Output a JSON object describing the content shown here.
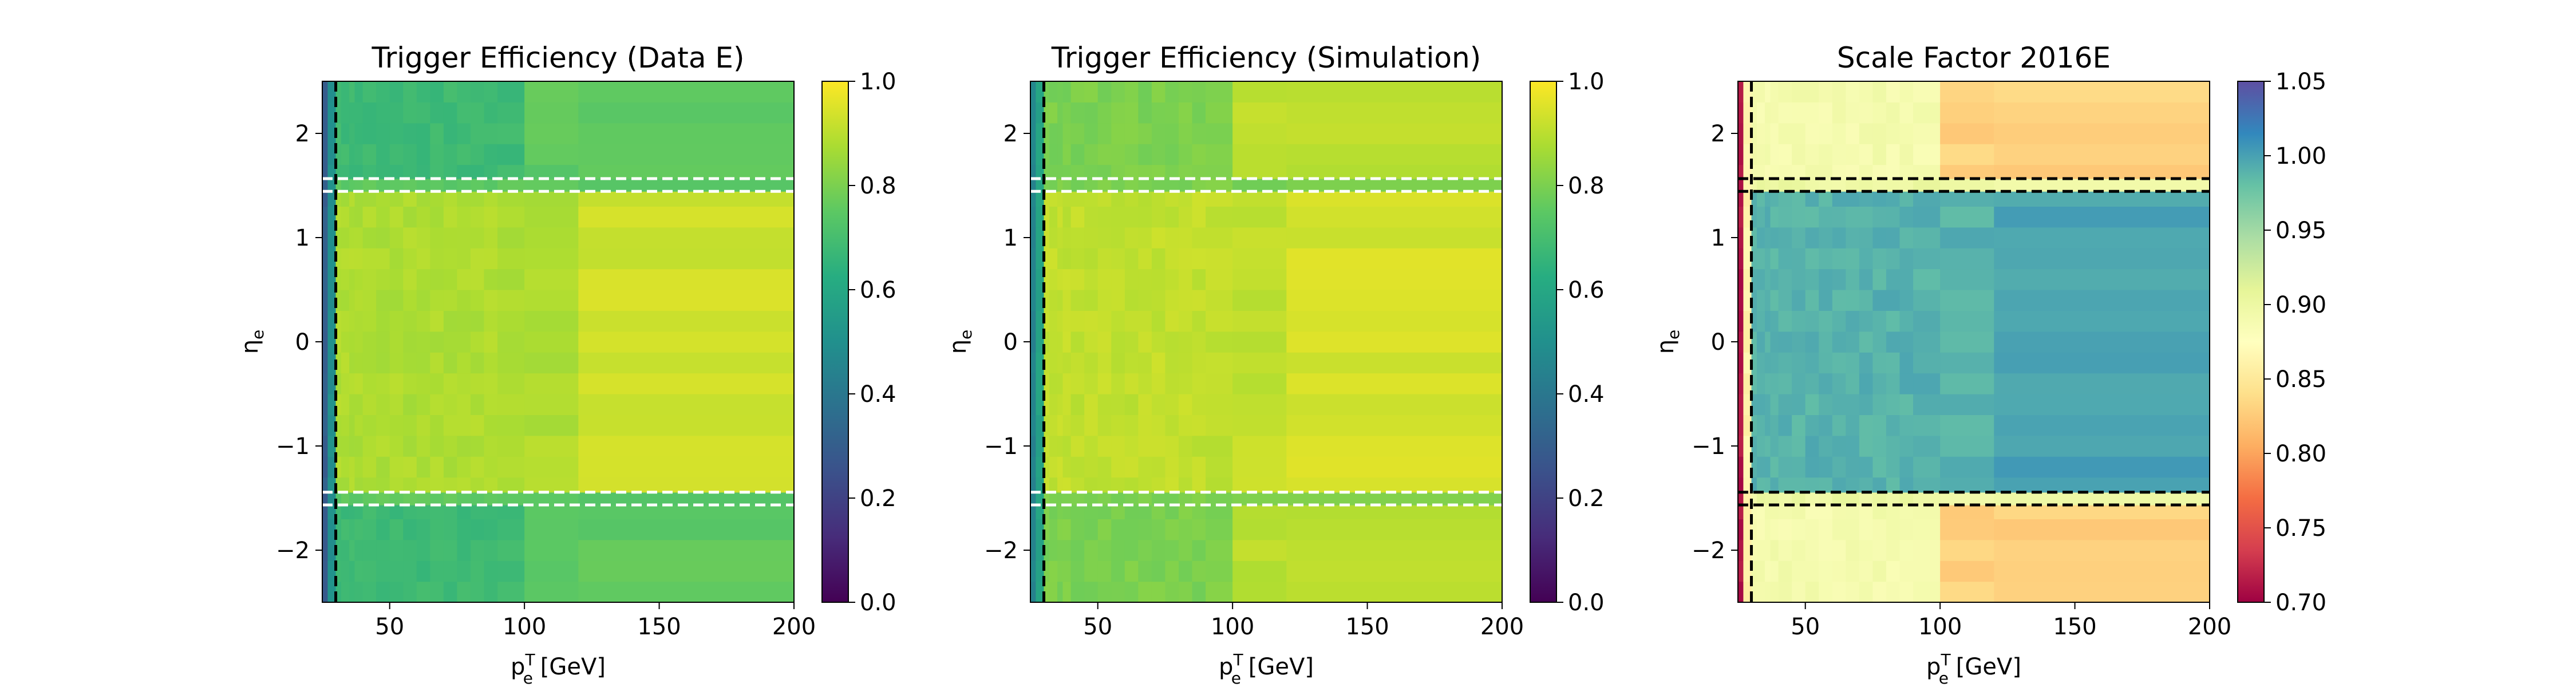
{
  "figure": {
    "panels": [
      {
        "title": "Trigger Efficiency (Data E)",
        "xlabel": "p",
        "xlabel_sub": "e",
        "xlabel_sup": "T",
        "xlabel_unit": " [GeV]",
        "ylabel": "η",
        "ylabel_sub": "e",
        "colorbar_ticks": [
          "0.0",
          "0.2",
          "0.4",
          "0.6",
          "0.8",
          "1.0"
        ]
      },
      {
        "title": "Trigger Efficiency (Simulation)",
        "xlabel": "p",
        "xlabel_sub": "e",
        "xlabel_sup": "T",
        "xlabel_unit": " [GeV]",
        "ylabel": "η",
        "ylabel_sub": "e",
        "colorbar_ticks": [
          "0.0",
          "0.2",
          "0.4",
          "0.6",
          "0.8",
          "1.0"
        ]
      },
      {
        "title": "Scale Factor 2016E",
        "xlabel": "p",
        "xlabel_sub": "e",
        "xlabel_sup": "T",
        "xlabel_unit": " [GeV]",
        "ylabel": "η",
        "ylabel_sub": "e",
        "colorbar_ticks": [
          "0.70",
          "0.75",
          "0.80",
          "0.85",
          "0.90",
          "0.95",
          "1.00",
          "1.05"
        ]
      }
    ]
  },
  "chart_data": [
    {
      "type": "heatmap",
      "title": "Trigger Efficiency (Data E)",
      "xlabel": "p_e^T [GeV]",
      "ylabel": "η_e",
      "xlim": [
        25,
        200
      ],
      "ylim": [
        -2.5,
        2.5
      ],
      "x_ticks": [
        50,
        100,
        150,
        200
      ],
      "y_ticks": [
        -2,
        -1,
        0,
        1,
        2
      ],
      "colormap": "viridis",
      "colorbar_range": [
        0.0,
        1.0
      ],
      "colorbar_ticks": [
        0.0,
        0.2,
        0.4,
        0.6,
        0.8,
        1.0
      ],
      "x_bins": [
        25,
        27,
        30,
        32,
        35,
        37,
        40,
        45,
        50,
        55,
        60,
        65,
        70,
        75,
        80,
        85,
        90,
        100,
        120,
        200
      ],
      "y_bins": [
        -2.5,
        -2.3,
        -2.1,
        -1.9,
        -1.7,
        -1.566,
        -1.444,
        -1.3,
        -1.1,
        -0.9,
        -0.7,
        -0.5,
        -0.3,
        -0.1,
        0.1,
        0.3,
        0.5,
        0.7,
        0.9,
        1.1,
        1.3,
        1.444,
        1.566,
        1.7,
        1.9,
        2.1,
        2.3,
        2.5
      ],
      "cell_values_by_region": {
        "first_pt_bin": 0.3,
        "second_pt_bin": 0.5,
        "endcap_low_pt": 0.68,
        "endcap_high_pt": 0.75,
        "barrel_low_pt": 0.88,
        "barrel_high_pt": 0.93,
        "gap": 0.75
      },
      "vertical_dashed_line_x": 30,
      "vertical_dashed_line_color": "black",
      "horizontal_dashed_lines_y": [
        -1.566,
        -1.444,
        1.444,
        1.566
      ],
      "horizontal_dashed_lines_color": "white"
    },
    {
      "type": "heatmap",
      "title": "Trigger Efficiency (Simulation)",
      "xlabel": "p_e^T [GeV]",
      "ylabel": "η_e",
      "xlim": [
        25,
        200
      ],
      "ylim": [
        -2.5,
        2.5
      ],
      "x_ticks": [
        50,
        100,
        150,
        200
      ],
      "y_ticks": [
        -2,
        -1,
        0,
        1,
        2
      ],
      "colormap": "viridis",
      "colorbar_range": [
        0.0,
        1.0
      ],
      "colorbar_ticks": [
        0.0,
        0.2,
        0.4,
        0.6,
        0.8,
        1.0
      ],
      "x_bins": [
        25,
        27,
        30,
        32,
        35,
        37,
        40,
        45,
        50,
        55,
        60,
        65,
        70,
        75,
        80,
        85,
        90,
        100,
        120,
        200
      ],
      "y_bins": [
        -2.5,
        -2.3,
        -2.1,
        -1.9,
        -1.7,
        -1.566,
        -1.444,
        -1.3,
        -1.1,
        -0.9,
        -0.7,
        -0.5,
        -0.3,
        -0.1,
        0.1,
        0.3,
        0.5,
        0.7,
        0.9,
        1.1,
        1.3,
        1.444,
        1.566,
        1.7,
        1.9,
        2.1,
        2.3,
        2.5
      ],
      "cell_values_by_region": {
        "first_pt_bin": 0.45,
        "second_pt_bin": 0.58,
        "endcap_low_pt": 0.8,
        "endcap_high_pt": 0.9,
        "barrel_low_pt": 0.91,
        "barrel_high_pt": 0.94,
        "gap": 0.8
      },
      "vertical_dashed_line_x": 30,
      "vertical_dashed_line_color": "black",
      "horizontal_dashed_lines_y": [
        -1.566,
        -1.444,
        1.444,
        1.566
      ],
      "horizontal_dashed_lines_color": "white"
    },
    {
      "type": "heatmap",
      "title": "Scale Factor 2016E",
      "xlabel": "p_e^T [GeV]",
      "ylabel": "η_e",
      "xlim": [
        25,
        200
      ],
      "ylim": [
        -2.5,
        2.5
      ],
      "x_ticks": [
        50,
        100,
        150,
        200
      ],
      "y_ticks": [
        -2,
        -1,
        0,
        1,
        2
      ],
      "colormap": "Spectral",
      "colorbar_range": [
        0.7,
        1.05
      ],
      "colorbar_ticks": [
        0.7,
        0.75,
        0.8,
        0.85,
        0.9,
        0.95,
        1.0,
        1.05
      ],
      "x_bins": [
        25,
        27,
        30,
        32,
        35,
        37,
        40,
        45,
        50,
        55,
        60,
        65,
        70,
        75,
        80,
        85,
        90,
        100,
        120,
        200
      ],
      "y_bins": [
        -2.5,
        -2.3,
        -2.1,
        -1.9,
        -1.7,
        -1.566,
        -1.444,
        -1.3,
        -1.1,
        -0.9,
        -0.7,
        -0.5,
        -0.3,
        -0.1,
        0.1,
        0.3,
        0.5,
        0.7,
        0.9,
        1.1,
        1.3,
        1.444,
        1.566,
        1.7,
        1.9,
        2.1,
        2.3,
        2.5
      ],
      "cell_values_by_region": {
        "first_pt_bin": 0.71,
        "second_pt_bin": 0.86,
        "endcap_low_pt": 0.89,
        "endcap_high_pt": 0.83,
        "barrel_low_pt": 0.99,
        "barrel_high_pt": 1.0,
        "gap": 0.9
      },
      "vertical_dashed_line_x": 30,
      "vertical_dashed_line_color": "black",
      "horizontal_dashed_lines_y": [
        -1.566,
        -1.444,
        1.444,
        1.566
      ],
      "horizontal_dashed_lines_color": "black"
    }
  ]
}
